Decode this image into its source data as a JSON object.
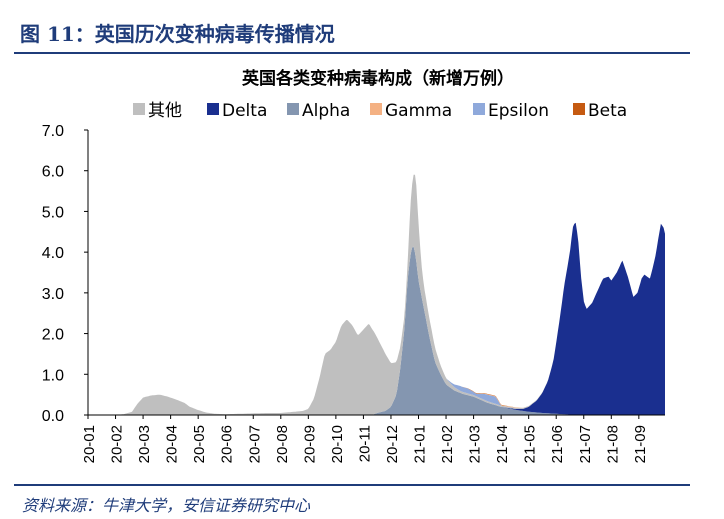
{
  "figure": {
    "title": "图 11：英国历次变种病毒传播情况",
    "source": "资料来源：牛津大学，安信证券研究中心"
  },
  "chart_data": {
    "type": "area",
    "stacked": true,
    "title": "英国各类变种病毒构成（新增万例）",
    "xlabel": "",
    "ylabel": "",
    "ylim": [
      0,
      7
    ],
    "yticks": [
      "0.0",
      "1.0",
      "2.0",
      "3.0",
      "4.0",
      "5.0",
      "6.0",
      "7.0"
    ],
    "xticks": [
      "20-01",
      "20-02",
      "20-03",
      "20-04",
      "20-05",
      "20-06",
      "20-07",
      "20-08",
      "20-09",
      "20-10",
      "20-11",
      "20-12",
      "21-01",
      "21-02",
      "21-03",
      "21-04",
      "21-05",
      "21-06",
      "21-07",
      "21-08",
      "21-09"
    ],
    "x_range": [
      0,
      20.95
    ],
    "grid": false,
    "legend_position": "top",
    "legend": [
      {
        "name": "其他",
        "color": "#bfbfbf"
      },
      {
        "name": "Delta",
        "color": "#1a2f8f"
      },
      {
        "name": "Alpha",
        "color": "#8496b0"
      },
      {
        "name": "Gamma",
        "color": "#f4b183"
      },
      {
        "name": "Epsilon",
        "color": "#8fa9db"
      },
      {
        "name": "Beta",
        "color": "#c55a11"
      }
    ],
    "series": [
      {
        "name": "Alpha",
        "color": "#8496b0",
        "x": [
          10.3,
          10.5,
          10.8,
          11.0,
          11.2,
          11.35,
          11.5,
          11.6,
          11.7,
          11.8,
          11.9,
          12.0,
          12.2,
          12.4,
          12.6,
          12.8,
          13.0,
          13.3,
          13.6,
          14.0,
          14.5,
          15.0,
          15.5,
          16.0,
          16.5,
          17.0,
          17.5,
          18.0
        ],
        "y": [
          0,
          0.05,
          0.1,
          0.2,
          0.5,
          1.2,
          2.2,
          3.3,
          3.9,
          4.2,
          3.9,
          3.3,
          2.6,
          1.9,
          1.3,
          1.0,
          0.75,
          0.6,
          0.52,
          0.45,
          0.3,
          0.2,
          0.13,
          0.08,
          0.05,
          0.03,
          0.01,
          0
        ]
      },
      {
        "name": "Delta",
        "color": "#1a2f8f",
        "x": [
          15.0,
          15.5,
          15.8,
          16.0,
          16.3,
          16.5,
          16.7,
          16.9,
          17.1,
          17.3,
          17.5,
          17.6,
          17.7,
          17.8,
          17.9,
          18.0,
          18.1,
          18.3,
          18.5,
          18.7,
          18.9,
          19.0,
          19.2,
          19.4,
          19.6,
          19.8,
          19.95,
          20.1,
          20.2,
          20.3,
          20.4,
          20.5,
          20.6,
          20.7,
          20.8,
          20.9,
          20.95
        ],
        "y": [
          0,
          0.02,
          0.05,
          0.12,
          0.3,
          0.5,
          0.8,
          1.3,
          2.2,
          3.2,
          4.0,
          4.6,
          4.75,
          4.3,
          3.4,
          2.8,
          2.6,
          2.75,
          3.05,
          3.35,
          3.4,
          3.3,
          3.5,
          3.8,
          3.4,
          2.9,
          3.0,
          3.35,
          3.45,
          3.4,
          3.35,
          3.6,
          3.9,
          4.3,
          4.7,
          4.6,
          4.45
        ]
      },
      {
        "name": "其他",
        "color": "#bfbfbf",
        "x": [
          0,
          1.0,
          1.3,
          1.6,
          1.8,
          2.0,
          2.3,
          2.6,
          2.9,
          3.2,
          3.5,
          3.7,
          4.0,
          4.3,
          4.6,
          5.0,
          5.5,
          6.0,
          6.5,
          7.0,
          7.5,
          7.8,
          8.0,
          8.2,
          8.4,
          8.6,
          8.8,
          9.0,
          9.2,
          9.4,
          9.6,
          9.8,
          10.0,
          10.2,
          10.4,
          10.6,
          10.8,
          10.95,
          11.05,
          11.2,
          11.35,
          11.5,
          11.6,
          11.7,
          11.8,
          11.9,
          12.0,
          12.1,
          12.2,
          12.3,
          12.4,
          12.6,
          12.8,
          13.0,
          13.2,
          13.5,
          14.0,
          14.5,
          15.0,
          15.5,
          16.0,
          16.5,
          17.0
        ],
        "y": [
          0,
          0,
          0.02,
          0.08,
          0.28,
          0.43,
          0.48,
          0.5,
          0.45,
          0.38,
          0.3,
          0.2,
          0.12,
          0.06,
          0.03,
          0.02,
          0.03,
          0.04,
          0.05,
          0.05,
          0.08,
          0.1,
          0.15,
          0.4,
          0.9,
          1.5,
          1.6,
          1.8,
          2.2,
          2.35,
          2.2,
          1.95,
          2.1,
          2.25,
          2.0,
          1.7,
          1.4,
          1.15,
          1.0,
          0.8,
          0.5,
          0.3,
          0.35,
          1.2,
          1.7,
          2.0,
          1.4,
          0.8,
          0.55,
          0.5,
          0.45,
          0.35,
          0.22,
          0.15,
          0.1,
          0.05,
          0.04,
          0.04,
          0.03,
          0.03,
          0.02,
          0.01,
          0
        ]
      },
      {
        "name": "Epsilon",
        "color": "#8fa9db",
        "x": [
          13.0,
          13.2,
          13.5,
          13.8,
          14.1,
          14.4,
          14.8,
          15.0
        ],
        "y": [
          0,
          0.04,
          0.12,
          0.12,
          0.06,
          0.15,
          0.18,
          0
        ]
      },
      {
        "name": "Gamma",
        "color": "#f4b183",
        "x": [
          14.0,
          14.5,
          15.0,
          15.5,
          16.0
        ],
        "y": [
          0,
          0.01,
          0.01,
          0.01,
          0
        ]
      },
      {
        "name": "Beta",
        "color": "#c55a11",
        "x": [
          13.5,
          14.0,
          14.5,
          15.0,
          15.5
        ],
        "y": [
          0,
          0.01,
          0.01,
          0.01,
          0
        ]
      }
    ]
  }
}
